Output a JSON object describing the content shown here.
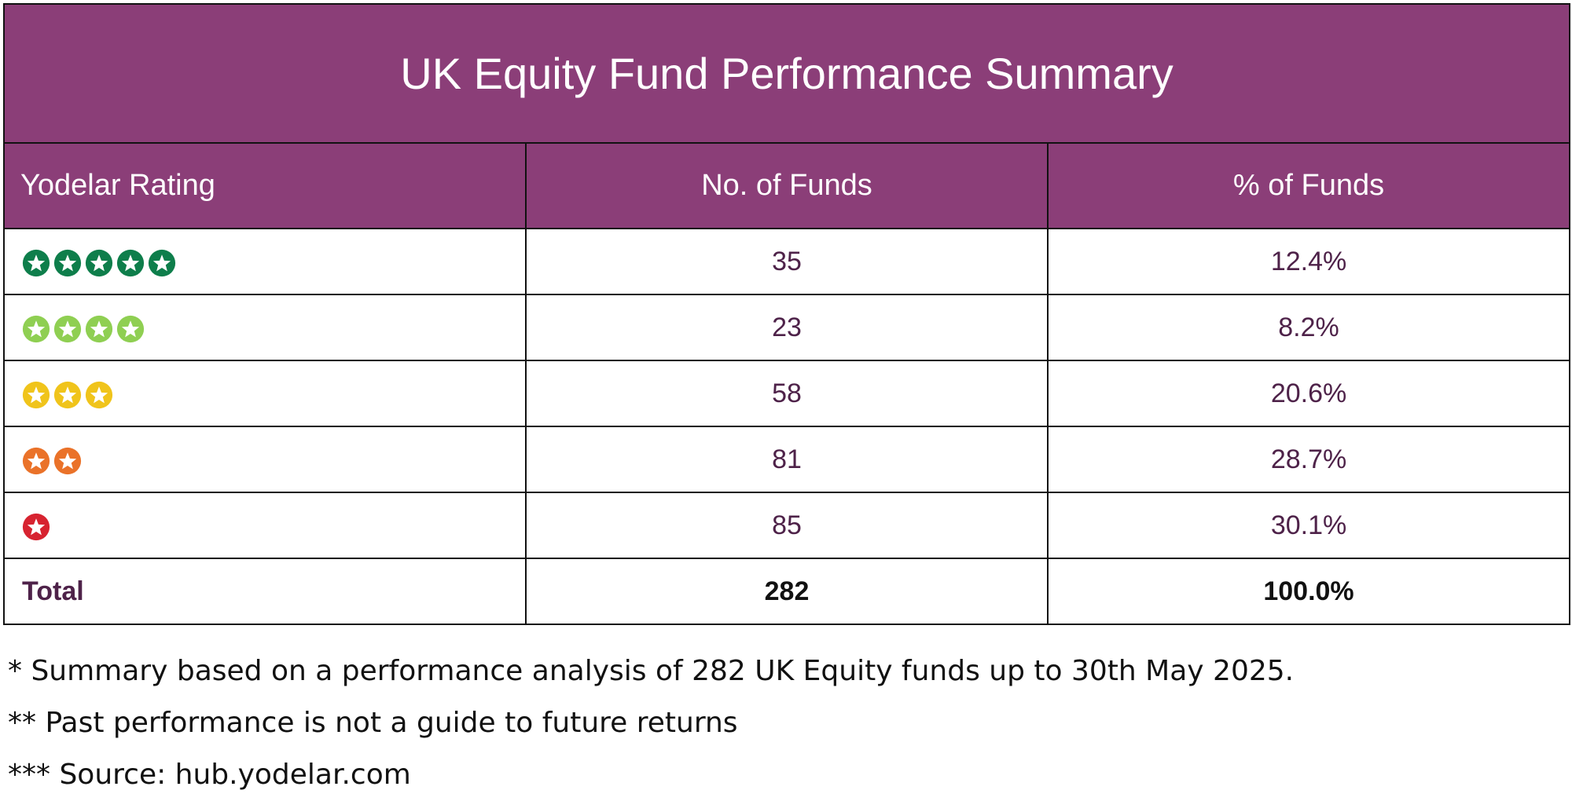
{
  "title": "UK Equity Fund Performance Summary",
  "colors": {
    "header_bg": "#8b3e78",
    "value_text": "#4e2249",
    "five_star": "#0e7e4b",
    "four_star": "#8fcf52",
    "three_star": "#f0c41b",
    "two_star": "#ea7229",
    "one_star": "#d72330"
  },
  "columns": [
    "Yodelar Rating",
    "No. of Funds",
    "% of Funds"
  ],
  "rows": [
    {
      "stars": 5,
      "star_color": "#0e7e4b",
      "funds": "35",
      "percent": "12.4%"
    },
    {
      "stars": 4,
      "star_color": "#8fcf52",
      "funds": "23",
      "percent": "8.2%"
    },
    {
      "stars": 3,
      "star_color": "#f0c41b",
      "funds": "58",
      "percent": "20.6%"
    },
    {
      "stars": 2,
      "star_color": "#ea7229",
      "funds": "81",
      "percent": "28.7%"
    },
    {
      "stars": 1,
      "star_color": "#d72330",
      "funds": "85",
      "percent": "30.1%"
    }
  ],
  "total": {
    "label": "Total",
    "funds": "282",
    "percent": "100.0%"
  },
  "notes": [
    "* Summary based on a performance analysis of 282 UK Equity funds up to 30th May 2025.",
    "** Past performance is not a guide to future returns",
    "*** Source: hub.yodelar.com"
  ]
}
